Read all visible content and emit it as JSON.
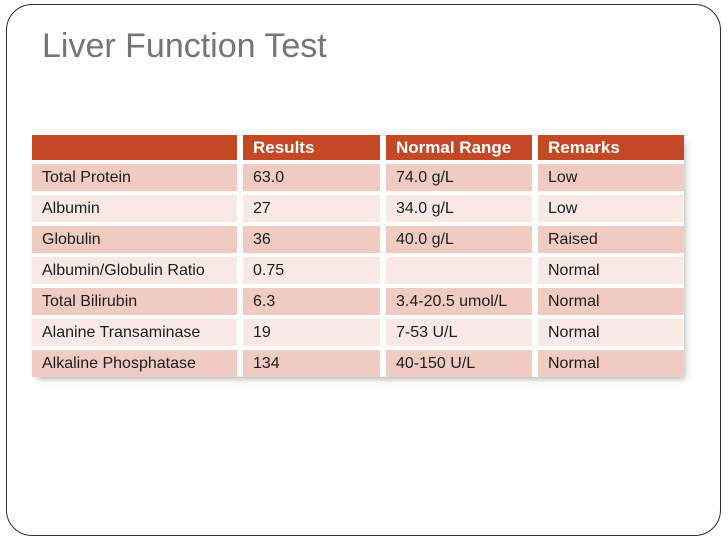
{
  "slide": {
    "title": "Liver Function Test"
  },
  "table": {
    "columns": [
      "",
      "Results",
      "Normal Range",
      "Remarks"
    ],
    "rows": [
      {
        "test": "Total Protein",
        "result": "63.0",
        "range": "74.0 g/L",
        "remark": "Low"
      },
      {
        "test": "Albumin",
        "result": "27",
        "range": "34.0 g/L",
        "remark": "Low"
      },
      {
        "test": "Globulin",
        "result": "36",
        "range": "40.0 g/L",
        "remark": "Raised"
      },
      {
        "test": "Albumin/Globulin Ratio",
        "result": "0.75",
        "range": "",
        "remark": "Normal"
      },
      {
        "test": "Total Bilirubin",
        "result": "6.3",
        "range": "3.4-20.5 umol/L",
        "remark": "Normal"
      },
      {
        "test": "Alanine Transaminase",
        "result": "19",
        "range": "7-53 U/L",
        "remark": "Normal"
      },
      {
        "test": "Alkaline Phosphatase",
        "result": "134",
        "range": "40-150 U/L",
        "remark": "Normal"
      }
    ]
  },
  "colors": {
    "header_bg": "#C24923",
    "header_text": "#FFFFFF",
    "row_band_dark": "#EFCBC2",
    "row_band_light": "#F8E9E5",
    "title_text": "#757575",
    "body_text": "#1D1D1D",
    "frame_border": "#2E2E2E"
  }
}
